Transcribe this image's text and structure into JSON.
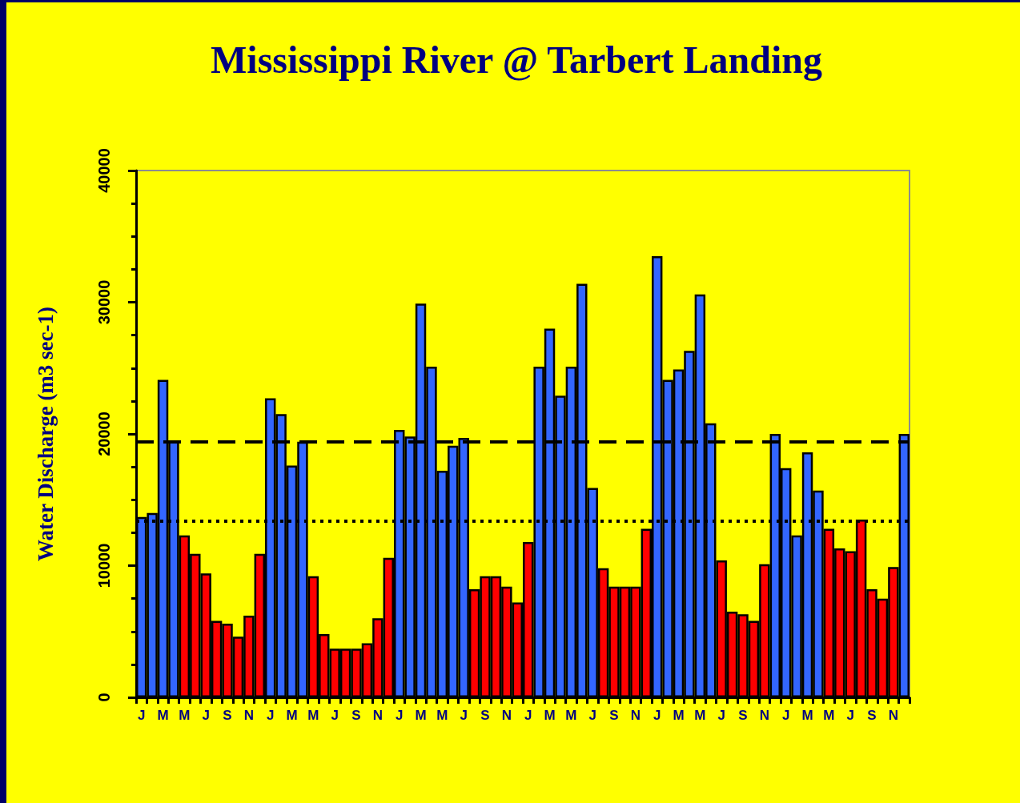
{
  "chart_data": {
    "type": "bar",
    "title": "Mississippi River @ Tarbert Landing",
    "ylabel": "Water Discharge (m3 sec-1)",
    "categories": [
      "J",
      null,
      "M",
      null,
      "M",
      null,
      "J",
      null,
      "S",
      null,
      "N",
      null,
      "J",
      null,
      "M",
      null,
      "M",
      null,
      "J",
      null,
      "S",
      null,
      "N",
      null,
      "J",
      null,
      "M",
      null,
      "M",
      null,
      "J",
      null,
      "S",
      null,
      "N",
      null,
      "J",
      null,
      "M",
      null,
      "M",
      null,
      "J",
      null,
      "S",
      null,
      "N",
      null,
      "J",
      null,
      "M",
      null,
      "M",
      null,
      "J",
      null,
      "S",
      null,
      "N",
      null,
      "J",
      null,
      "M",
      null,
      "M",
      null,
      "J",
      null,
      "S",
      null,
      "N",
      null
    ],
    "values": [
      13700,
      14000,
      24100,
      19500,
      12300,
      10900,
      9400,
      5800,
      5600,
      4600,
      6200,
      10900,
      22700,
      21500,
      17600,
      19400,
      9200,
      4800,
      3700,
      3700,
      3700,
      4100,
      6000,
      10600,
      20300,
      19800,
      29900,
      25100,
      17200,
      19100,
      19700,
      8200,
      9200,
      9200,
      8400,
      7200,
      11800,
      25100,
      28000,
      22900,
      25100,
      31400,
      15900,
      9800,
      8400,
      8400,
      8400,
      12800,
      33500,
      24100,
      24900,
      26300,
      30600,
      20800,
      10400,
      6500,
      6300,
      5800,
      10100,
      20000,
      17400,
      12300,
      18600,
      15700,
      12800,
      11300,
      11100,
      13500,
      8200,
      7500,
      9900,
      20000
    ],
    "colors": [
      "#3366ff",
      "#3366ff",
      "#3366ff",
      "#3366ff",
      "#ff0000",
      "#ff0000",
      "#ff0000",
      "#ff0000",
      "#ff0000",
      "#ff0000",
      "#ff0000",
      "#ff0000",
      "#3366ff",
      "#3366ff",
      "#3366ff",
      "#3366ff",
      "#ff0000",
      "#ff0000",
      "#ff0000",
      "#ff0000",
      "#ff0000",
      "#ff0000",
      "#ff0000",
      "#ff0000",
      "#3366ff",
      "#3366ff",
      "#3366ff",
      "#3366ff",
      "#3366ff",
      "#3366ff",
      "#3366ff",
      "#ff0000",
      "#ff0000",
      "#ff0000",
      "#ff0000",
      "#ff0000",
      "#ff0000",
      "#3366ff",
      "#3366ff",
      "#3366ff",
      "#3366ff",
      "#3366ff",
      "#3366ff",
      "#ff0000",
      "#ff0000",
      "#ff0000",
      "#ff0000",
      "#ff0000",
      "#3366ff",
      "#3366ff",
      "#3366ff",
      "#3366ff",
      "#3366ff",
      "#3366ff",
      "#ff0000",
      "#ff0000",
      "#ff0000",
      "#ff0000",
      "#ff0000",
      "#3366ff",
      "#3366ff",
      "#3366ff",
      "#3366ff",
      "#3366ff",
      "#ff0000",
      "#ff0000",
      "#ff0000",
      "#ff0000",
      "#ff0000",
      "#ff0000",
      "#ff0000",
      "#3366ff"
    ],
    "ylim": [
      0,
      40000
    ],
    "yticks": [
      0,
      10000,
      20000,
      30000,
      40000
    ],
    "ref_lines": [
      {
        "axis": "y",
        "value": 19400,
        "color": "#000000",
        "line_style": "dashed"
      },
      {
        "axis": "y",
        "value": 13400,
        "color": "#000000",
        "line_style": "dotted"
      }
    ],
    "grid": false
  }
}
